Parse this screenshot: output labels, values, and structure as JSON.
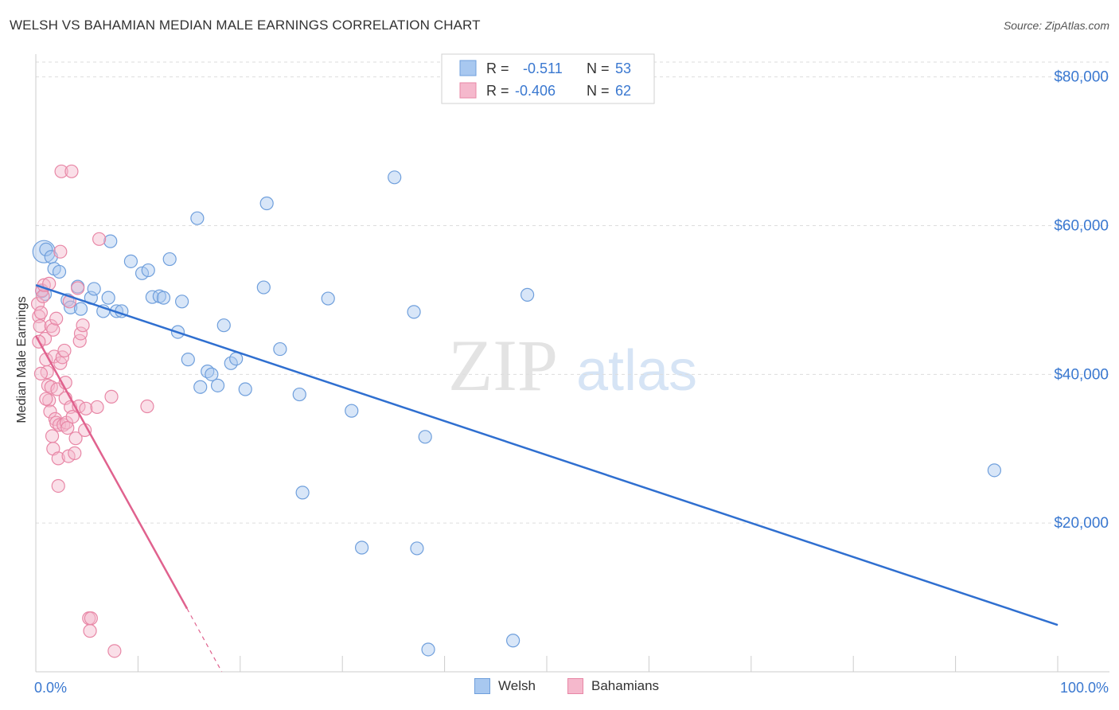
{
  "title": "WELSH VS BAHAMIAN MEDIAN MALE EARNINGS CORRELATION CHART",
  "source": "Source: ZipAtlas.com",
  "colors": {
    "welsh_fill": "#a8c8f0",
    "welsh_stroke": "#6f9fdc",
    "welsh_line": "#2f6fd0",
    "bahamian_fill": "#f5b8cc",
    "bahamian_stroke": "#e887a6",
    "bahamian_line": "#e0628e",
    "grid": "#dddddd",
    "axis_label_blue": "#3a78d0"
  },
  "watermark": {
    "part1": "ZIP",
    "part2": "atlas"
  },
  "legend_top": {
    "rows": [
      {
        "r_label": "R =",
        "r_value": "-0.511",
        "n_label": "N =",
        "n_value": "53"
      },
      {
        "r_label": "R =",
        "r_value": "-0.406",
        "n_label": "N =",
        "n_value": "62"
      }
    ]
  },
  "legend_bottom": {
    "welsh": "Welsh",
    "bahamians": "Bahamians"
  },
  "chart_data": {
    "type": "scatter",
    "title": "WELSH VS BAHAMIAN MEDIAN MALE EARNINGS CORRELATION CHART",
    "xlabel": "",
    "ylabel": "Median Male Earnings",
    "xlim": [
      0,
      100
    ],
    "ylim": [
      0,
      82000
    ],
    "x_tick_labels": [
      "0.0%",
      "100.0%"
    ],
    "y_ticks": [
      20000,
      40000,
      60000,
      80000
    ],
    "y_tick_labels": [
      "$20,000",
      "$40,000",
      "$60,000",
      "$80,000"
    ],
    "grid": true,
    "series": [
      {
        "name": "Welsh",
        "r": -0.511,
        "n": 53,
        "trend": {
          "x": [
            0,
            100
          ],
          "y": [
            52000,
            6300
          ]
        },
        "points": [
          [
            0.8,
            56500
          ],
          [
            1.0,
            56800
          ],
          [
            1.5,
            55800
          ],
          [
            1.8,
            54200
          ],
          [
            2.3,
            53800
          ],
          [
            0.9,
            50800
          ],
          [
            3.1,
            50000
          ],
          [
            3.4,
            49000
          ],
          [
            4.1,
            51800
          ],
          [
            4.4,
            48800
          ],
          [
            5.4,
            50300
          ],
          [
            5.7,
            51500
          ],
          [
            6.6,
            48500
          ],
          [
            7.1,
            50300
          ],
          [
            7.3,
            57900
          ],
          [
            7.9,
            48500
          ],
          [
            8.4,
            48500
          ],
          [
            9.3,
            55200
          ],
          [
            10.4,
            53600
          ],
          [
            11.0,
            54000
          ],
          [
            11.4,
            50400
          ],
          [
            12.1,
            50500
          ],
          [
            12.5,
            50300
          ],
          [
            13.1,
            55500
          ],
          [
            13.9,
            45700
          ],
          [
            14.3,
            49800
          ],
          [
            14.9,
            42000
          ],
          [
            15.8,
            61000
          ],
          [
            16.1,
            38300
          ],
          [
            16.8,
            40400
          ],
          [
            17.2,
            40000
          ],
          [
            17.8,
            38500
          ],
          [
            18.4,
            46600
          ],
          [
            19.1,
            41500
          ],
          [
            19.6,
            42100
          ],
          [
            20.5,
            38000
          ],
          [
            22.3,
            51700
          ],
          [
            22.6,
            63000
          ],
          [
            23.9,
            43400
          ],
          [
            25.8,
            37300
          ],
          [
            26.1,
            24100
          ],
          [
            28.6,
            50200
          ],
          [
            30.9,
            35100
          ],
          [
            31.9,
            16700
          ],
          [
            35.1,
            66500
          ],
          [
            37.0,
            48400
          ],
          [
            37.3,
            16600
          ],
          [
            38.1,
            31600
          ],
          [
            38.4,
            3000
          ],
          [
            46.7,
            4200
          ],
          [
            48.1,
            50700
          ],
          [
            93.8,
            27100
          ],
          [
            0.6,
            51200
          ]
        ]
      },
      {
        "name": "Bahamians",
        "r": -0.406,
        "n": 62,
        "trend": {
          "x": [
            0,
            14.8
          ],
          "y": [
            45200,
            8500
          ]
        },
        "trend_dashed": {
          "x": [
            14.8,
            18.2
          ],
          "y": [
            8500,
            0
          ]
        },
        "points": [
          [
            0.2,
            49500
          ],
          [
            0.3,
            47800
          ],
          [
            0.4,
            46500
          ],
          [
            0.5,
            48300
          ],
          [
            0.6,
            51300
          ],
          [
            0.7,
            50500
          ],
          [
            0.8,
            52000
          ],
          [
            0.9,
            44800
          ],
          [
            1.0,
            42000
          ],
          [
            1.1,
            40300
          ],
          [
            1.2,
            38500
          ],
          [
            1.3,
            36500
          ],
          [
            1.3,
            52200
          ],
          [
            1.4,
            35000
          ],
          [
            1.5,
            46500
          ],
          [
            1.5,
            38300
          ],
          [
            1.6,
            31700
          ],
          [
            1.7,
            30000
          ],
          [
            1.7,
            46000
          ],
          [
            1.8,
            42400
          ],
          [
            1.9,
            34000
          ],
          [
            2.0,
            47500
          ],
          [
            2.0,
            33500
          ],
          [
            2.1,
            38000
          ],
          [
            2.2,
            28700
          ],
          [
            2.2,
            25000
          ],
          [
            2.3,
            33200
          ],
          [
            2.4,
            41500
          ],
          [
            2.4,
            56500
          ],
          [
            2.5,
            67300
          ],
          [
            2.6,
            42300
          ],
          [
            2.7,
            33200
          ],
          [
            2.8,
            43200
          ],
          [
            2.9,
            36800
          ],
          [
            3.0,
            33500
          ],
          [
            3.1,
            32800
          ],
          [
            3.2,
            29000
          ],
          [
            3.3,
            49800
          ],
          [
            3.4,
            35600
          ],
          [
            3.5,
            67300
          ],
          [
            3.6,
            34300
          ],
          [
            3.8,
            29400
          ],
          [
            3.9,
            31400
          ],
          [
            4.1,
            51600
          ],
          [
            4.2,
            35700
          ],
          [
            4.3,
            44500
          ],
          [
            4.4,
            45500
          ],
          [
            4.6,
            46600
          ],
          [
            4.8,
            32500
          ],
          [
            4.9,
            35400
          ],
          [
            5.2,
            7200
          ],
          [
            5.3,
            5500
          ],
          [
            5.4,
            7200
          ],
          [
            6.0,
            35600
          ],
          [
            6.2,
            58200
          ],
          [
            7.4,
            37000
          ],
          [
            7.7,
            2800
          ],
          [
            10.9,
            35700
          ],
          [
            0.5,
            40100
          ],
          [
            1.0,
            36700
          ],
          [
            0.3,
            44400
          ],
          [
            2.9,
            38900
          ]
        ]
      }
    ]
  }
}
